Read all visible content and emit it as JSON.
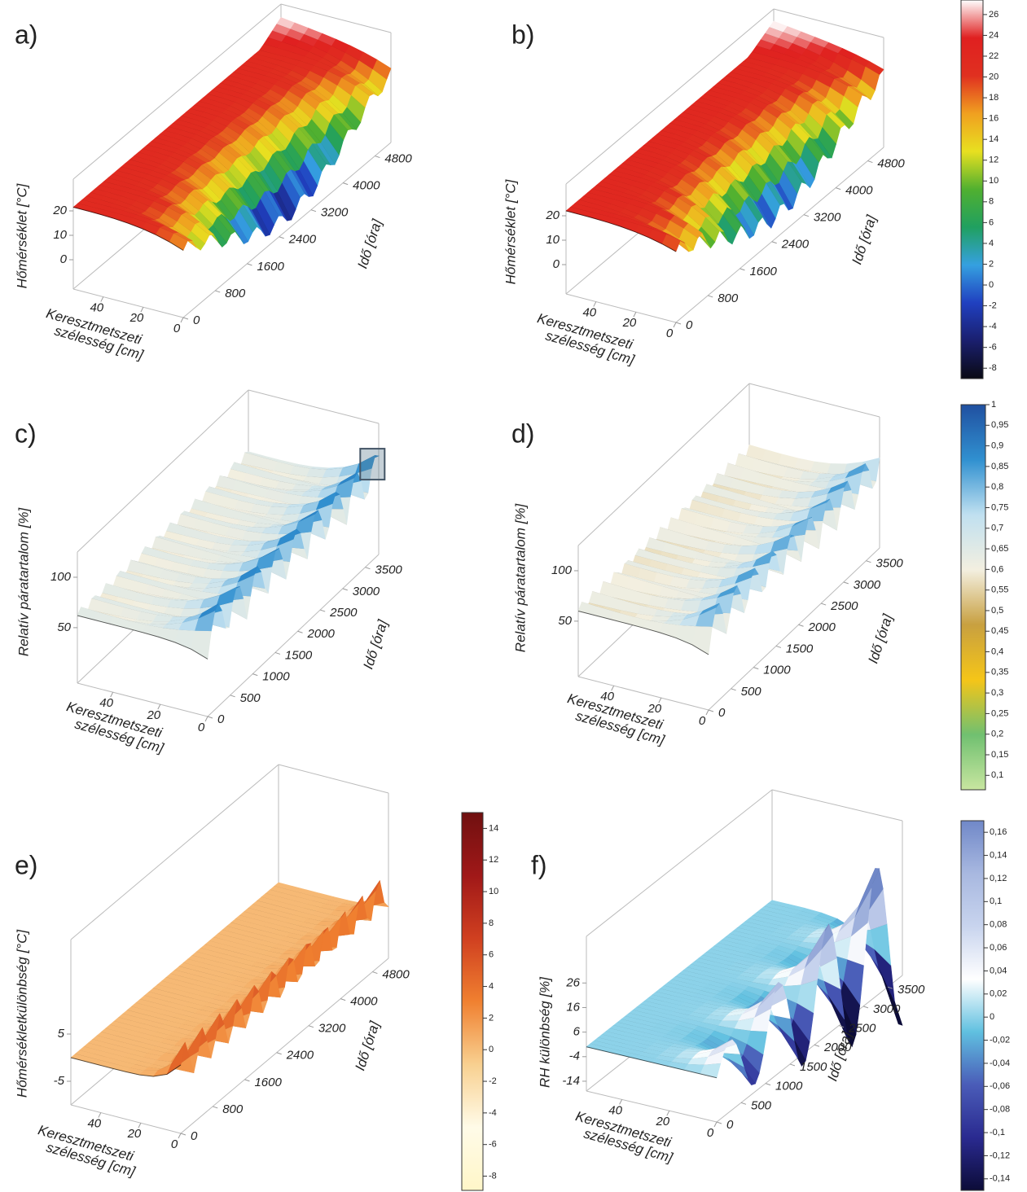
{
  "chart_data": [
    {
      "type": "surface3d",
      "panel_label": "a)",
      "zlabel": "Hőmérséklet [°C]",
      "xlabel": [
        "Keresztmetszeti",
        "szélesség [cm]"
      ],
      "ylabel": "Idő [óra]",
      "xlim": [
        0,
        55
      ],
      "ylim": [
        0,
        5200
      ],
      "zlim": [
        -12,
        33
      ],
      "xticks": [
        0,
        20,
        40
      ],
      "yticks": [
        0,
        800,
        1600,
        2400,
        3200,
        4000,
        4800
      ],
      "zticks": [
        0,
        10,
        20
      ]
    },
    {
      "type": "surface3d",
      "panel_label": "b)",
      "zlabel": "Hőmérséklet [°C]",
      "xlabel": [
        "Keresztmetszeti",
        "szélesség [cm]"
      ],
      "ylabel": "Idő [óra]",
      "xlim": [
        0,
        55
      ],
      "ylim": [
        0,
        5200
      ],
      "zlim": [
        -12,
        33
      ],
      "xticks": [
        0,
        20,
        40
      ],
      "yticks": [
        0,
        800,
        1600,
        2400,
        3200,
        4000,
        4800
      ],
      "zticks": [
        0,
        10,
        20
      ]
    },
    {
      "type": "surface3d",
      "panel_label": "c)",
      "zlabel": "Relatív páratartalom [%]",
      "xlabel": [
        "Keresztmetszeti",
        "szélesség [cm]"
      ],
      "ylabel": "Idő [óra]",
      "xlim": [
        0,
        55
      ],
      "ylim": [
        0,
        3800
      ],
      "zlim": [
        -5,
        125
      ],
      "xticks": [
        0,
        20,
        40
      ],
      "yticks": [
        0,
        500,
        1000,
        1500,
        2000,
        2500,
        3000,
        3500
      ],
      "zticks": [
        50,
        100
      ]
    },
    {
      "type": "surface3d",
      "panel_label": "d)",
      "zlabel": "Relatív páratartalom [%]",
      "xlabel": [
        "Keresztmetszeti",
        "szélesség [cm]"
      ],
      "ylabel": "Idő [óra]",
      "xlim": [
        0,
        55
      ],
      "ylim": [
        0,
        3800
      ],
      "zlim": [
        -5,
        125
      ],
      "xticks": [
        0,
        20,
        40
      ],
      "yticks": [
        0,
        500,
        1000,
        1500,
        2000,
        2500,
        3000,
        3500
      ],
      "zticks": [
        50,
        100
      ]
    },
    {
      "type": "surface3d",
      "panel_label": "e)",
      "zlabel": "Hőmérsékletkülönbség [°C]",
      "xlabel": [
        "Keresztmetszeti",
        "szélesség [cm]"
      ],
      "ylabel": "Idő [óra]",
      "xlim": [
        0,
        55
      ],
      "ylim": [
        0,
        5200
      ],
      "zlim": [
        -10,
        25
      ],
      "xticks": [
        0,
        20,
        40
      ],
      "yticks": [
        0,
        800,
        1600,
        2400,
        3200,
        4000,
        4800
      ],
      "zticks": [
        -5,
        5
      ]
    },
    {
      "type": "surface3d",
      "panel_label": "f)",
      "zlabel": "RH különbség [%]",
      "xlabel": [
        "Keresztmetszeti",
        "szélesség [cm]"
      ],
      "ylabel": "Idő [óra]",
      "xlim": [
        0,
        55
      ],
      "ylim": [
        0,
        3800
      ],
      "zlim": [
        -18,
        45
      ],
      "xticks": [
        0,
        20,
        40
      ],
      "yticks": [
        0,
        500,
        1000,
        1500,
        2000,
        2500,
        3000,
        3500
      ],
      "zticks": [
        -14,
        -4,
        6,
        16,
        26
      ]
    },
    {
      "type": "colorbar",
      "ylim": [
        -9,
        27.4
      ],
      "yticks": [
        -8,
        -6,
        -4,
        -2,
        0,
        2,
        4,
        6,
        8,
        10,
        12,
        14,
        16,
        18,
        20,
        22,
        24,
        26
      ],
      "colors": [
        "#0a0a14",
        "#1a1f6e",
        "#2040c0",
        "#35a0e0",
        "#20a060",
        "#50b030",
        "#e8e020",
        "#f0a020",
        "#e03020",
        "#e02020",
        "#ffffff"
      ]
    },
    {
      "type": "colorbar",
      "ylim": [
        0.065,
        1
      ],
      "yticks": [
        {
          "value": 0.1,
          "label": "0,1"
        },
        {
          "value": 0.15,
          "label": "0,15"
        },
        {
          "value": 0.2,
          "label": "0,2"
        },
        {
          "value": 0.25,
          "label": "0,25"
        },
        {
          "value": 0.3,
          "label": "0,3"
        },
        {
          "value": 0.35,
          "label": "0,35"
        },
        {
          "value": 0.4,
          "label": "0,4"
        },
        {
          "value": 0.45,
          "label": "0,45"
        },
        {
          "value": 0.5,
          "label": "0,5"
        },
        {
          "value": 0.55,
          "label": "0,55"
        },
        {
          "value": 0.6,
          "label": "0,6"
        },
        {
          "value": 0.65,
          "label": "0,65"
        },
        {
          "value": 0.7,
          "label": "0,7"
        },
        {
          "value": 0.75,
          "label": "0,75"
        },
        {
          "value": 0.8,
          "label": "0,8"
        },
        {
          "value": 0.85,
          "label": "0,85"
        },
        {
          "value": 0.9,
          "label": "0,9"
        },
        {
          "value": 0.95,
          "label": "0,95"
        },
        1
      ],
      "colors": [
        "#c8e6a0",
        "#70c070",
        "#f5c518",
        "#c8a040",
        "#f3efe0",
        "#c0e0f0",
        "#3090d0",
        "#2050a0"
      ]
    },
    {
      "type": "colorbar",
      "ylim": [
        -8.9,
        15
      ],
      "yticks": [
        -8,
        -6,
        -4,
        -2,
        0,
        2,
        4,
        6,
        8,
        10,
        12,
        14
      ],
      "colors": [
        "#fff6c8",
        "#fffbe8",
        "#f8d090",
        "#f08030",
        "#d04020",
        "#a01818",
        "#701010"
      ]
    },
    {
      "type": "colorbar",
      "ylim": [
        -0.15,
        0.17
      ],
      "yticks": [
        {
          "value": -0.14,
          "label": "-0,14"
        },
        {
          "value": -0.12,
          "label": "-0,12"
        },
        {
          "value": -0.1,
          "label": "-0,1"
        },
        {
          "value": -0.08,
          "label": "-0,08"
        },
        {
          "value": -0.06,
          "label": "-0,06"
        },
        {
          "value": -0.04,
          "label": "-0,04"
        },
        {
          "value": -0.02,
          "label": "-0,02"
        },
        0,
        {
          "value": 0.02,
          "label": "0,02"
        },
        {
          "value": 0.04,
          "label": "0,04"
        },
        {
          "value": 0.06,
          "label": "0,06"
        },
        {
          "value": 0.08,
          "label": "0,08"
        },
        {
          "value": 0.1,
          "label": "0,1"
        },
        {
          "value": 0.12,
          "label": "0,12"
        },
        {
          "value": 0.14,
          "label": "0,14"
        },
        {
          "value": 0.16,
          "label": "0,16"
        }
      ],
      "colors": [
        "#0c0c38",
        "#2a2a90",
        "#4a5cb8",
        "#60c0e0",
        "#ffffff",
        "#c8d4ee",
        "#a8b8e0",
        "#7088c8"
      ]
    }
  ]
}
